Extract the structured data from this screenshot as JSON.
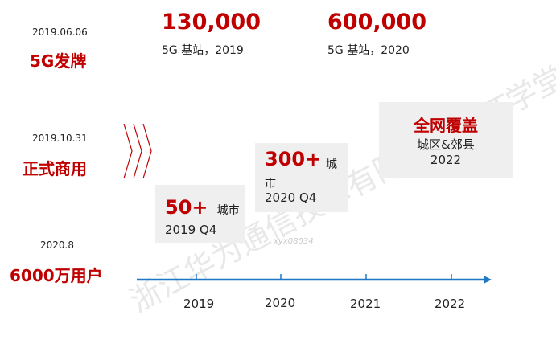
{
  "milestones": [
    {
      "date": "2019.06.06",
      "title": "5G发牌"
    },
    {
      "date": "2019.10.31",
      "title": "正式商用"
    },
    {
      "date": "2020.8",
      "title": "6000万用户"
    }
  ],
  "stats": [
    {
      "value": "130,000",
      "caption": "5G 基站，2019"
    },
    {
      "value": "600,000",
      "caption": "5G 基站，2020"
    }
  ],
  "boxes": {
    "b2019": {
      "value": "50+",
      "unit": "城市",
      "period": "2019 Q4"
    },
    "b2020": {
      "value": "300+",
      "unit_line1": "城",
      "unit_line2": "市",
      "period": "2020 Q4"
    },
    "b2022": {
      "title": "全网覆盖",
      "line1": "城区&郊县",
      "line2": "2022"
    }
  },
  "timeline": {
    "years": [
      "2019",
      "2020",
      "2021",
      "2022"
    ]
  },
  "watermark": {
    "text": "浙江华为通信技术有限公司 ICT学堂",
    "tag": "xyx08034"
  },
  "colors": {
    "accent": "#c00000",
    "axis": "#1f77c4",
    "box": "#efefef"
  }
}
